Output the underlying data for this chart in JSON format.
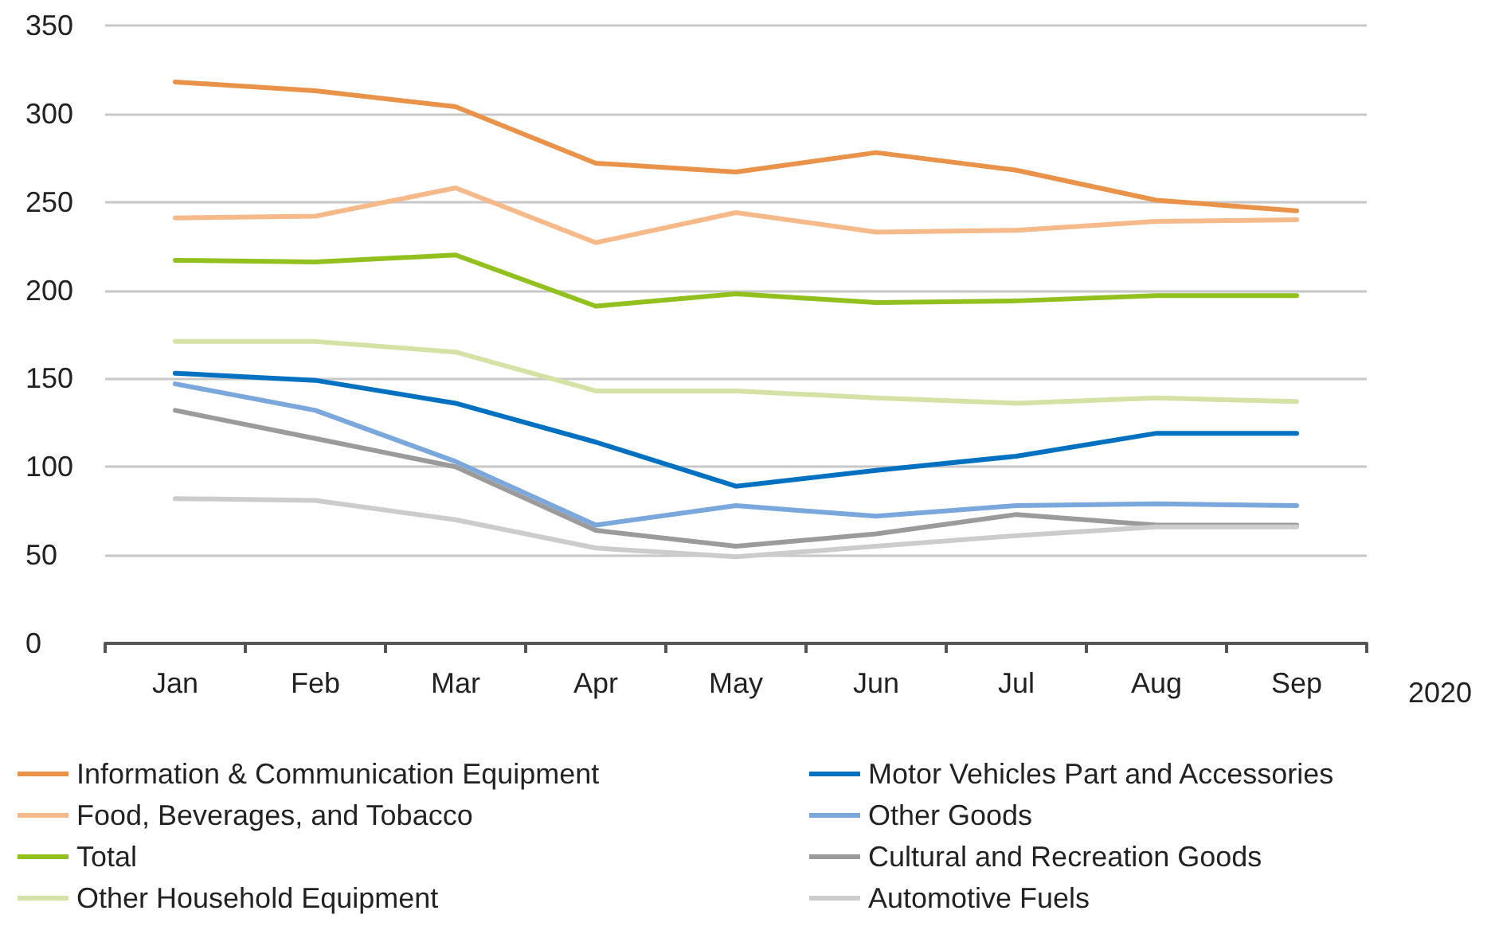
{
  "chart_data": {
    "type": "line",
    "xlabel": "2020",
    "categories": [
      "Jan",
      "Feb",
      "Mar",
      "Apr",
      "May",
      "Jun",
      "Jul",
      "Aug",
      "Sep"
    ],
    "series": [
      {
        "name": "Information & Communication Equipment",
        "color": "#e8924a",
        "values": [
          318,
          313,
          304,
          272,
          267,
          278,
          268,
          251,
          245
        ]
      },
      {
        "name": "Food, Beverages, and Tobacco",
        "color": "#f5b98a",
        "values": [
          241,
          242,
          258,
          227,
          244,
          233,
          234,
          239,
          240
        ]
      },
      {
        "name": "Total",
        "color": "#92c01f",
        "values": [
          217,
          216,
          220,
          191,
          198,
          193,
          194,
          197,
          197
        ]
      },
      {
        "name": "Other Household Equipment",
        "color": "#d4e3a5",
        "values": [
          171,
          171,
          165,
          143,
          143,
          139,
          136,
          139,
          137
        ]
      },
      {
        "name": "Motor Vehicles Part and Accessories",
        "color": "#0070c0",
        "values": [
          153,
          149,
          136,
          114,
          89,
          98,
          106,
          119,
          119
        ]
      },
      {
        "name": "Other Goods",
        "color": "#7aa7dc",
        "values": [
          147,
          132,
          103,
          67,
          78,
          72,
          78,
          79,
          78
        ]
      },
      {
        "name": "Cultural and Recreation Goods",
        "color": "#9b9b9b",
        "values": [
          132,
          116,
          100,
          64,
          55,
          62,
          73,
          67,
          67
        ]
      },
      {
        "name": "Automotive Fuels",
        "color": "#cccccc",
        "values": [
          82,
          81,
          70,
          54,
          49,
          55,
          61,
          66,
          66
        ]
      }
    ],
    "ylim": [
      0,
      350
    ],
    "yticks": [
      0,
      50,
      100,
      150,
      200,
      250,
      300,
      350
    ],
    "grid": "y",
    "legend": "bottom",
    "marker": "none",
    "line_style": "solid"
  }
}
